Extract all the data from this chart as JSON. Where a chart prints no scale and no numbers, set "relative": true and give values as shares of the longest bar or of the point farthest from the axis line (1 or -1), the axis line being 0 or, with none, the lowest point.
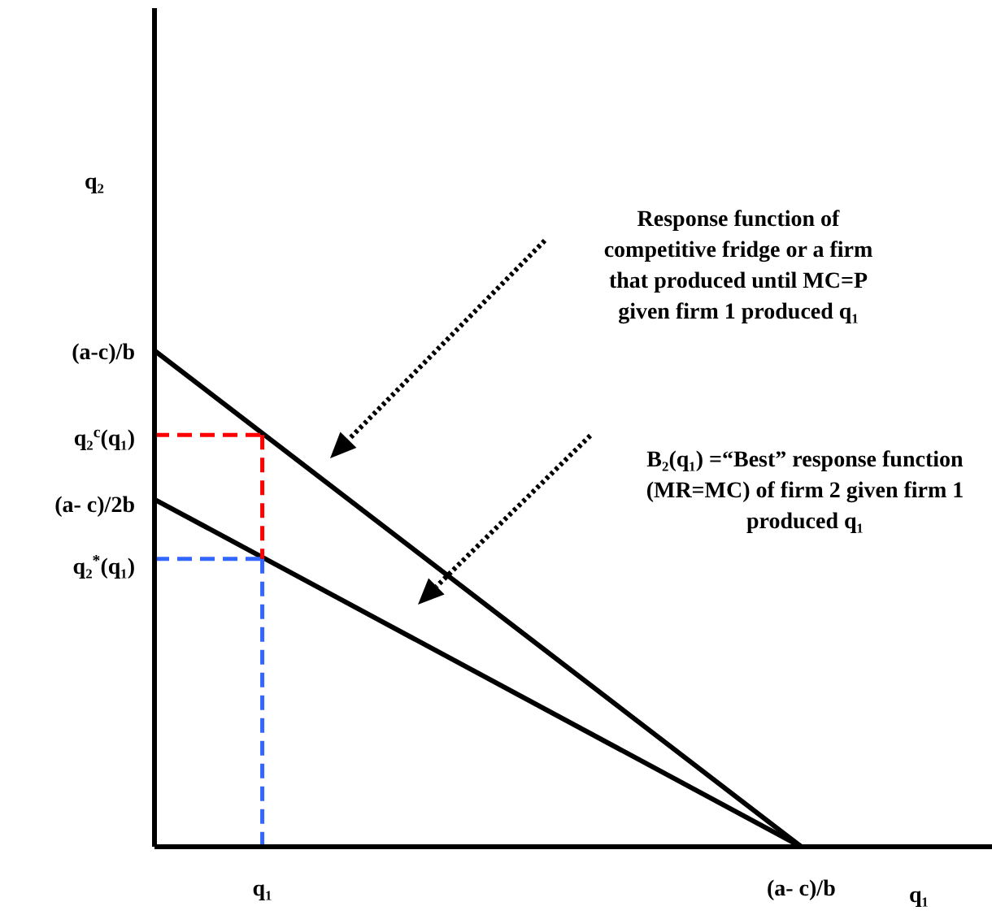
{
  "chart_data": {
    "type": "line",
    "xlabel": "q₁",
    "relative": true,
    "categories": [
      null,
      "q₁",
      null,
      null,
      null,
      null,
      "(a- c)/b"
    ],
    "marker": "none",
    "series": [
      {
        "color": "#000000",
        "values": [
          1,
          null,
          null,
          null,
          null,
          null,
          0
        ]
      },
      {
        "color": "#000000",
        "values": [
          0.7,
          null,
          null,
          null,
          null,
          null,
          0
        ]
      },
      {
        "color": "#ff0000",
        "values": [
          0.83,
          0.83,
          null,
          null,
          null,
          null,
          null
        ],
        "line_style": "dashed"
      },
      {
        "color": "#ff0000",
        "x": [
          "q₁",
          "q₁"
        ],
        "values": [
          0.83,
          0.58
        ],
        "line_style": "dashed"
      },
      {
        "color": "#3366ff",
        "values": [
          0.58,
          0.58,
          null,
          null,
          null,
          null,
          null
        ],
        "line_style": "dashed"
      },
      {
        "color": "#3366ff",
        "x": [
          "q₁",
          "q₁"
        ],
        "values": [
          0.58,
          0
        ],
        "line_style": "dashed"
      }
    ],
    "annotations": [
      "q₂",
      "(a-c)/b",
      "q₂$^{c}$(q₁)",
      "(a- c)/2b",
      "q₂$^{*}$(q₁)",
      "Response function of competitive fridge or a firm that produced until MC=P given firm 1 produced q₁",
      "B₂(q₁) =“Best” response function (MR=MC) of firm 2 given firm 1 produced  q₁"
    ]
  }
}
